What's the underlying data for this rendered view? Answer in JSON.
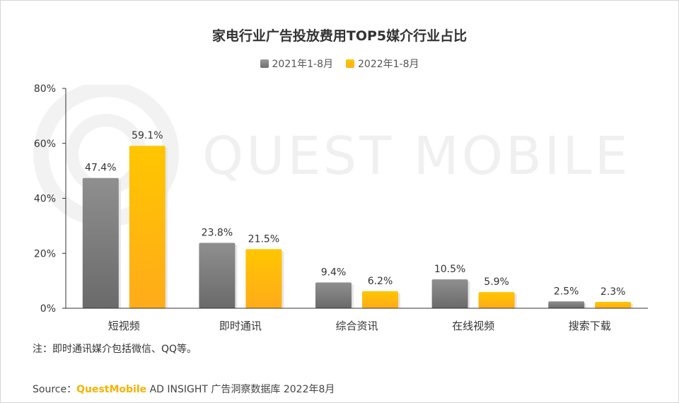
{
  "watermark": "QUEST MOBILE",
  "footnote": "注：即时通讯媒介包括微信、QQ等。",
  "source": {
    "prefix": "Source：",
    "brand": "QuestMobile",
    "rest": " AD INSIGHT 广告洞察数据库 2022年8月"
  },
  "colors": {
    "series_2021": "#8a8a8a",
    "series_2022": "#ffc000",
    "axis": "#333333"
  },
  "chart_data": {
    "type": "bar",
    "title": "家电行业广告投放费用TOP5媒介行业占比",
    "xlabel": "",
    "ylabel": "",
    "categories": [
      "短视频",
      "即时通讯",
      "综合资讯",
      "在线视频",
      "搜索下载"
    ],
    "series": [
      {
        "name": "2021年1-8月",
        "values": [
          47.4,
          23.8,
          9.4,
          10.5,
          2.5
        ],
        "labels": [
          "47.4%",
          "23.8%",
          "9.4%",
          "10.5%",
          "2.5%"
        ]
      },
      {
        "name": "2022年1-8月",
        "values": [
          59.1,
          21.5,
          6.2,
          5.9,
          2.3
        ],
        "labels": [
          "59.1%",
          "21.5%",
          "6.2%",
          "5.9%",
          "2.3%"
        ]
      }
    ],
    "ylim": [
      0,
      80
    ],
    "yticks": [
      0,
      20,
      40,
      60,
      80
    ],
    "ytick_labels": [
      "0%",
      "20%",
      "40%",
      "60%",
      "80%"
    ],
    "grid": false,
    "legend_position": "top-center"
  }
}
